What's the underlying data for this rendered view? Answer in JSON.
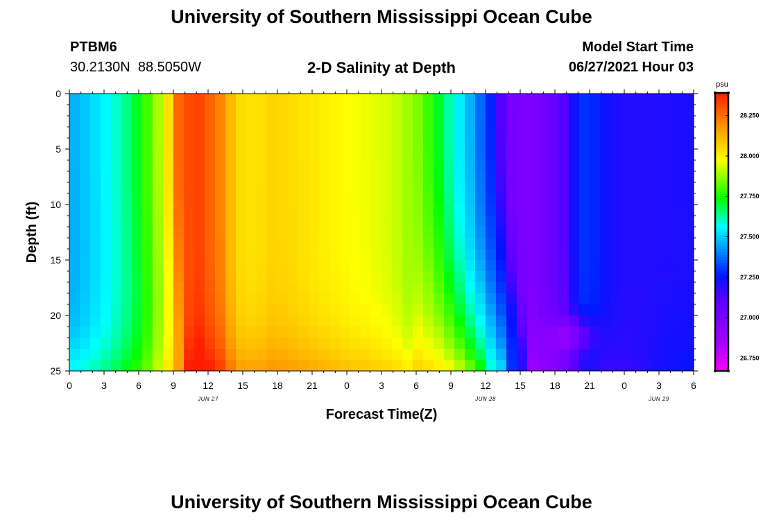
{
  "header": {
    "title": "University of Southern Mississippi Ocean Cube",
    "station_id": "PTBM6",
    "station_coords": "30.2130N  88.5050W",
    "plot_subtitle": "2-D Salinity at Depth",
    "model_start_label": "Model Start Time",
    "model_start_value": "06/27/2021 Hour 03"
  },
  "footer": {
    "title": "University of Southern Mississippi Ocean Cube"
  },
  "colors": {
    "background": "#ffffff",
    "axis": "#000000"
  },
  "chart_data": {
    "type": "heatmap",
    "title": "2-D Salinity at Depth",
    "xlabel": "Forecast Time(Z)",
    "ylabel": "Depth (ft)",
    "units": "psu",
    "x_range_hours": [
      0,
      54
    ],
    "y_range_ft": [
      0,
      25
    ],
    "x_tick_values": [
      0,
      3,
      6,
      9,
      12,
      15,
      18,
      21,
      24,
      27,
      30,
      33,
      36,
      39,
      42,
      45,
      48,
      51,
      54
    ],
    "x_tick_labels": [
      "0",
      "3",
      "6",
      "9",
      "12",
      "15",
      "18",
      "21",
      "0",
      "3",
      "6",
      "9",
      "12",
      "15",
      "18",
      "21",
      "0",
      "3",
      "6"
    ],
    "date_labels": [
      {
        "hour": 12,
        "text": "JUN 27"
      },
      {
        "hour": 36,
        "text": "JUN 28"
      },
      {
        "hour": 51,
        "text": "JUN 29"
      }
    ],
    "y_tick_values": [
      0,
      5,
      10,
      15,
      20,
      25
    ],
    "y_tick_labels": [
      "0",
      "5",
      "10",
      "15",
      "20",
      "25"
    ],
    "colorbar": {
      "label": "psu",
      "range": [
        26.67,
        28.39
      ],
      "tick_values": [
        26.75,
        27.0,
        27.25,
        27.5,
        27.75,
        28.0,
        28.25
      ],
      "tick_labels": [
        "26.750",
        "27.000",
        "27.250",
        "27.500",
        "27.750",
        "28.000",
        "28.250"
      ]
    },
    "surface_salinity_profile": {
      "hours": [
        0,
        1,
        3,
        4.5,
        5.5,
        6.4,
        7.3,
        8.3,
        9.5,
        11,
        13,
        14.5,
        16,
        17.5,
        19,
        21,
        24,
        26,
        28,
        30,
        31.5,
        32.5,
        33.5,
        34.5,
        35.8,
        36.8,
        37.5,
        38,
        39,
        40,
        41.5,
        43,
        44,
        45,
        46,
        47,
        48,
        50,
        52,
        54
      ],
      "values": [
        27.45,
        27.48,
        27.55,
        27.62,
        27.68,
        27.76,
        27.86,
        27.97,
        28.28,
        28.34,
        28.22,
        28.05,
        28.03,
        28.06,
        28.05,
        28.02,
        27.98,
        27.96,
        27.93,
        27.86,
        27.76,
        27.66,
        27.56,
        27.48,
        27.34,
        27.24,
        27.1,
        27.02,
        26.99,
        26.98,
        27.05,
        27.14,
        27.28,
        27.3,
        27.25,
        27.22,
        27.2,
        27.2,
        27.21,
        27.21
      ]
    }
  }
}
